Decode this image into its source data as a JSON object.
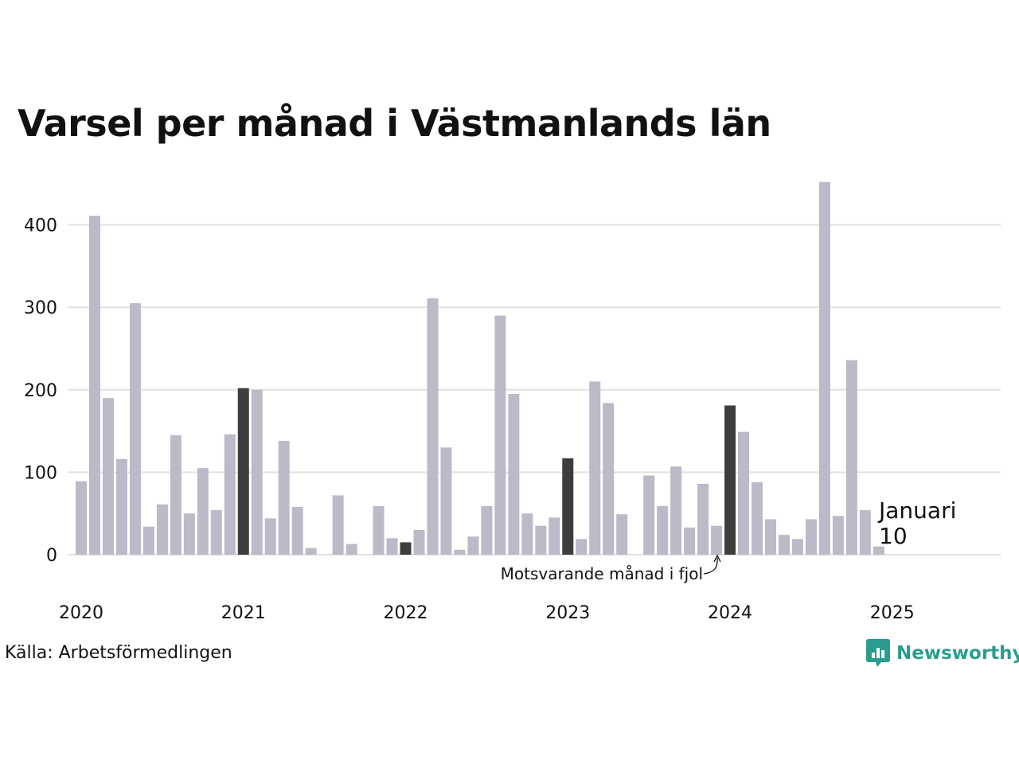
{
  "page": {
    "title": "Varsel per månad i Västmanlands län",
    "source": "Källa: Arbetsförmedlingen",
    "brand": "Newsworthy",
    "icons": [
      "newsworthy-logo-icon"
    ]
  },
  "colors": {
    "bar_default": "#bcb9c8",
    "bar_same_month": "#3d3d3d",
    "bar_current": "#1a9989",
    "grid": "#e2e2e2",
    "brand": "#2a9d8f"
  },
  "chart_data": {
    "type": "bar",
    "title": "Varsel per månad i Västmanlands län",
    "xlabel": "",
    "ylabel": "",
    "x_start": "2020-01",
    "x_end": "2025-01",
    "xticks": [
      "2020",
      "2021",
      "2022",
      "2023",
      "2024",
      "2025"
    ],
    "yticks": [
      0,
      100,
      200,
      300,
      400
    ],
    "ylim": [
      0,
      455
    ],
    "grid": true,
    "highlight_color_groups": {
      "same_month": [
        "2021-01",
        "2022-01",
        "2023-01",
        "2024-01"
      ],
      "current": [
        "2025-01"
      ]
    },
    "values": [
      89,
      411,
      190,
      116,
      305,
      34,
      61,
      145,
      50,
      105,
      54,
      146,
      202,
      200,
      44,
      138,
      58,
      8,
      0,
      72,
      13,
      0,
      59,
      20,
      15,
      30,
      311,
      130,
      6,
      22,
      59,
      290,
      195,
      50,
      35,
      45,
      117,
      19,
      210,
      184,
      49,
      0,
      96,
      59,
      107,
      33,
      86,
      35,
      181,
      149,
      88,
      43,
      24,
      19,
      43,
      452,
      47,
      236,
      54,
      10
    ],
    "annotations": {
      "current_label": "Januari",
      "current_value": "10",
      "same_month_label": "Motsvarande månad i fjol"
    }
  }
}
